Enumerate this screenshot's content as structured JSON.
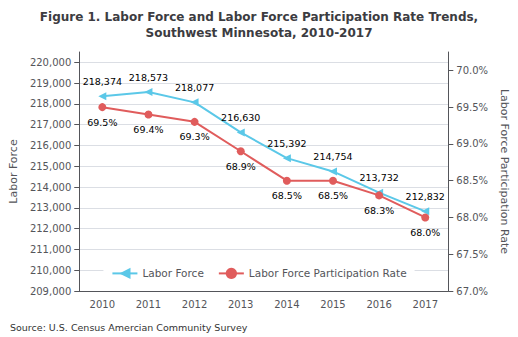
{
  "chart_data": {
    "type": "line",
    "title": "Figure 1. Labor Force and Labor Force Participation Rate Trends,\nSouthwest Minnesota, 2010-2017",
    "categories": [
      "2010",
      "2011",
      "2012",
      "2013",
      "2014",
      "2015",
      "2016",
      "2017"
    ],
    "series": [
      {
        "name": "Labor Force",
        "color": "#5bc8e8",
        "marker": "triangle-left",
        "axis": "y",
        "values": [
          218374,
          218573,
          218077,
          216630,
          215392,
          214754,
          213732,
          212832
        ],
        "value_labels": [
          "218,374",
          "218,573",
          "218,077",
          "216,630",
          "215,392",
          "214,754",
          "213,732",
          "212,832"
        ]
      },
      {
        "name": "Labor Force Participation Rate",
        "color": "#e05c5c",
        "marker": "circle",
        "axis": "y2",
        "values": [
          69.5,
          69.4,
          69.3,
          68.9,
          68.5,
          68.5,
          68.3,
          68.0
        ],
        "value_labels": [
          "69.5%",
          "69.4%",
          "69.3%",
          "68.9%",
          "68.5%",
          "68.5%",
          "68.3%",
          "68.0%"
        ]
      }
    ],
    "ylabel": "Labor Force",
    "y2label": "Labor Force Participation Rate",
    "ylim": [
      209000,
      220500
    ],
    "yticks": [
      {
        "value": 209000,
        "label": "209,000"
      },
      {
        "value": 210000,
        "label": "210,000"
      },
      {
        "value": 211000,
        "label": "211,000"
      },
      {
        "value": 212000,
        "label": "212,000"
      },
      {
        "value": 213000,
        "label": "213,000"
      },
      {
        "value": 214000,
        "label": "214,000"
      },
      {
        "value": 215000,
        "label": "215,000"
      },
      {
        "value": 216000,
        "label": "216,000"
      },
      {
        "value": 217000,
        "label": "217,000"
      },
      {
        "value": 218000,
        "label": "218,000"
      },
      {
        "value": 219000,
        "label": "219,000"
      },
      {
        "value": 220000,
        "label": "220,000"
      }
    ],
    "y2lim": [
      67.0,
      70.25
    ],
    "y2ticks": [
      {
        "value": 67.0,
        "label": "67.0%"
      },
      {
        "value": 67.5,
        "label": "67.5%"
      },
      {
        "value": 68.0,
        "label": "68.0%"
      },
      {
        "value": 68.5,
        "label": "68.5%"
      },
      {
        "value": 69.0,
        "label": "69.0%"
      },
      {
        "value": 69.5,
        "label": "69.5%"
      },
      {
        "value": 70.0,
        "label": "70.0%"
      }
    ],
    "grid": true,
    "legend": "lower center",
    "data_labels": true,
    "source": "Source: U.S. Census Amercian Community Survey"
  }
}
